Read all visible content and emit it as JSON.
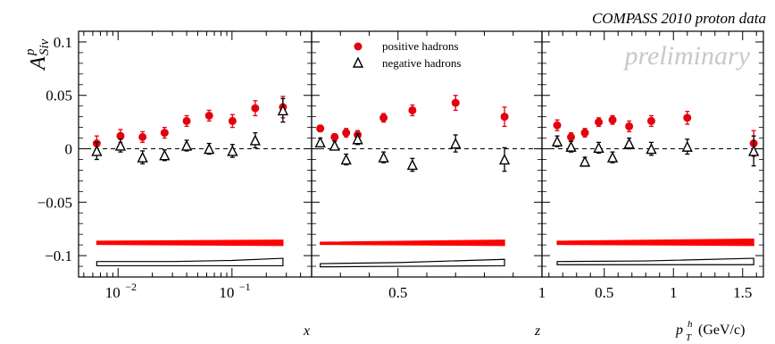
{
  "header": {
    "title": "COMPASS 2010 proton data",
    "watermark": "preliminary"
  },
  "colors": {
    "positive": "#e3000f",
    "negative": "#000000",
    "band_positive": "#ff0000",
    "band_negative": "#000000"
  },
  "legend": {
    "positive": "positive hadrons",
    "negative": "negative hadrons"
  },
  "y_axis": {
    "label_main": "A",
    "label_sup": "p",
    "label_sub": "Siv",
    "ylim": [
      -0.12,
      0.11
    ],
    "ticks": [
      0.1,
      0.05,
      0,
      -0.05,
      -0.1
    ],
    "tick_labels": [
      "0.1",
      "0.05",
      "0",
      "−0.05",
      "−0.1"
    ]
  },
  "chart_data": [
    {
      "type": "scatter",
      "name": "x-panel",
      "xlabel": "x",
      "xscale": "log",
      "xlim": [
        0.0045,
        0.5
      ],
      "tick_labels": [
        {
          "value": 0.01,
          "base": "10",
          "exp": "−2"
        },
        {
          "value": 0.1,
          "base": "10",
          "exp": "−1"
        }
      ],
      "series": [
        {
          "kind": "positive",
          "x": [
            0.0065,
            0.0105,
            0.0164,
            0.0256,
            0.04,
            0.063,
            0.101,
            0.16,
            0.28
          ],
          "y": [
            0.005,
            0.012,
            0.011,
            0.015,
            0.026,
            0.031,
            0.026,
            0.038,
            0.039
          ],
          "err": [
            0.007,
            0.006,
            0.005,
            0.005,
            0.005,
            0.005,
            0.006,
            0.007,
            0.01
          ]
        },
        {
          "kind": "negative",
          "x": [
            0.0065,
            0.0105,
            0.0164,
            0.0256,
            0.04,
            0.063,
            0.101,
            0.16,
            0.28
          ],
          "y": [
            -0.002,
            0.003,
            -0.008,
            -0.006,
            0.003,
            0.0,
            -0.002,
            0.008,
            0.036
          ],
          "err": [
            0.008,
            0.006,
            0.006,
            0.005,
            0.005,
            0.005,
            0.006,
            0.007,
            0.011
          ]
        }
      ],
      "band_positive": {
        "x": [
          0.0065,
          0.28
        ],
        "top": [
          -0.0865,
          -0.0855
        ],
        "bottom": [
          -0.0895,
          -0.0905
        ]
      },
      "band_negative": {
        "x": [
          0.0065,
          0.03,
          0.1,
          0.28
        ],
        "top": [
          -0.1055,
          -0.1055,
          -0.1045,
          -0.1025
        ],
        "bottom": [
          -0.1095,
          -0.1095,
          -0.1095,
          -0.1095
        ]
      }
    },
    {
      "type": "scatter",
      "name": "z-panel",
      "xlabel": "z",
      "xscale": "linear",
      "xlim": [
        0.2,
        1.0
      ],
      "tick_values": [
        0.5,
        1
      ],
      "tick_labels": [
        "0.5",
        "1"
      ],
      "series": [
        {
          "kind": "positive",
          "x": [
            0.23,
            0.28,
            0.32,
            0.36,
            0.45,
            0.55,
            0.7,
            0.87
          ],
          "y": [
            0.019,
            0.011,
            0.015,
            0.013,
            0.029,
            0.036,
            0.043,
            0.03
          ],
          "err": [
            0.003,
            0.003,
            0.004,
            0.004,
            0.004,
            0.005,
            0.007,
            0.009
          ]
        },
        {
          "kind": "negative",
          "x": [
            0.23,
            0.28,
            0.32,
            0.36,
            0.45,
            0.55,
            0.7,
            0.87
          ],
          "y": [
            0.006,
            0.003,
            -0.01,
            0.009,
            -0.008,
            -0.015,
            0.005,
            -0.01
          ],
          "err": [
            0.004,
            0.004,
            0.005,
            0.005,
            0.005,
            0.006,
            0.008,
            0.011
          ]
        }
      ],
      "band_positive": {
        "x": [
          0.23,
          0.87
        ],
        "top": [
          -0.0875,
          -0.0855
        ],
        "bottom": [
          -0.0895,
          -0.0905
        ]
      },
      "band_negative": {
        "x": [
          0.23,
          0.5,
          0.87
        ],
        "top": [
          -0.1075,
          -0.1065,
          -0.1035
        ],
        "bottom": [
          -0.1105,
          -0.11,
          -0.1095
        ]
      }
    },
    {
      "type": "scatter",
      "name": "pt-panel",
      "xlabel_main": "p",
      "xlabel_sup": "h",
      "xlabel_sub": "T",
      "xlabel_unit": "(GeV/c)",
      "xscale": "linear",
      "xlim": [
        0.05,
        1.65
      ],
      "tick_values": [
        0.5,
        1,
        1.5
      ],
      "tick_labels": [
        "0.5",
        "1",
        "1.5"
      ],
      "series": [
        {
          "kind": "positive",
          "x": [
            0.16,
            0.26,
            0.36,
            0.46,
            0.56,
            0.68,
            0.84,
            1.1,
            1.58
          ],
          "y": [
            0.022,
            0.011,
            0.015,
            0.025,
            0.027,
            0.021,
            0.026,
            0.029,
            0.005
          ],
          "err": [
            0.005,
            0.004,
            0.004,
            0.004,
            0.004,
            0.005,
            0.005,
            0.006,
            0.012
          ]
        },
        {
          "kind": "negative",
          "x": [
            0.16,
            0.26,
            0.36,
            0.46,
            0.56,
            0.68,
            0.84,
            1.1,
            1.58
          ],
          "y": [
            0.007,
            0.002,
            -0.012,
            0.001,
            -0.008,
            0.005,
            0.0,
            0.002,
            -0.002
          ],
          "err": [
            0.005,
            0.005,
            0.004,
            0.005,
            0.005,
            0.005,
            0.006,
            0.007,
            0.014
          ]
        }
      ],
      "band_positive": {
        "x": [
          0.16,
          1.58
        ],
        "top": [
          -0.0865,
          -0.0845
        ],
        "bottom": [
          -0.0895,
          -0.0905
        ]
      },
      "band_negative": {
        "x": [
          0.16,
          0.8,
          1.58
        ],
        "top": [
          -0.1055,
          -0.105,
          -0.1025
        ],
        "bottom": [
          -0.1085,
          -0.1085,
          -0.1085
        ]
      }
    }
  ]
}
